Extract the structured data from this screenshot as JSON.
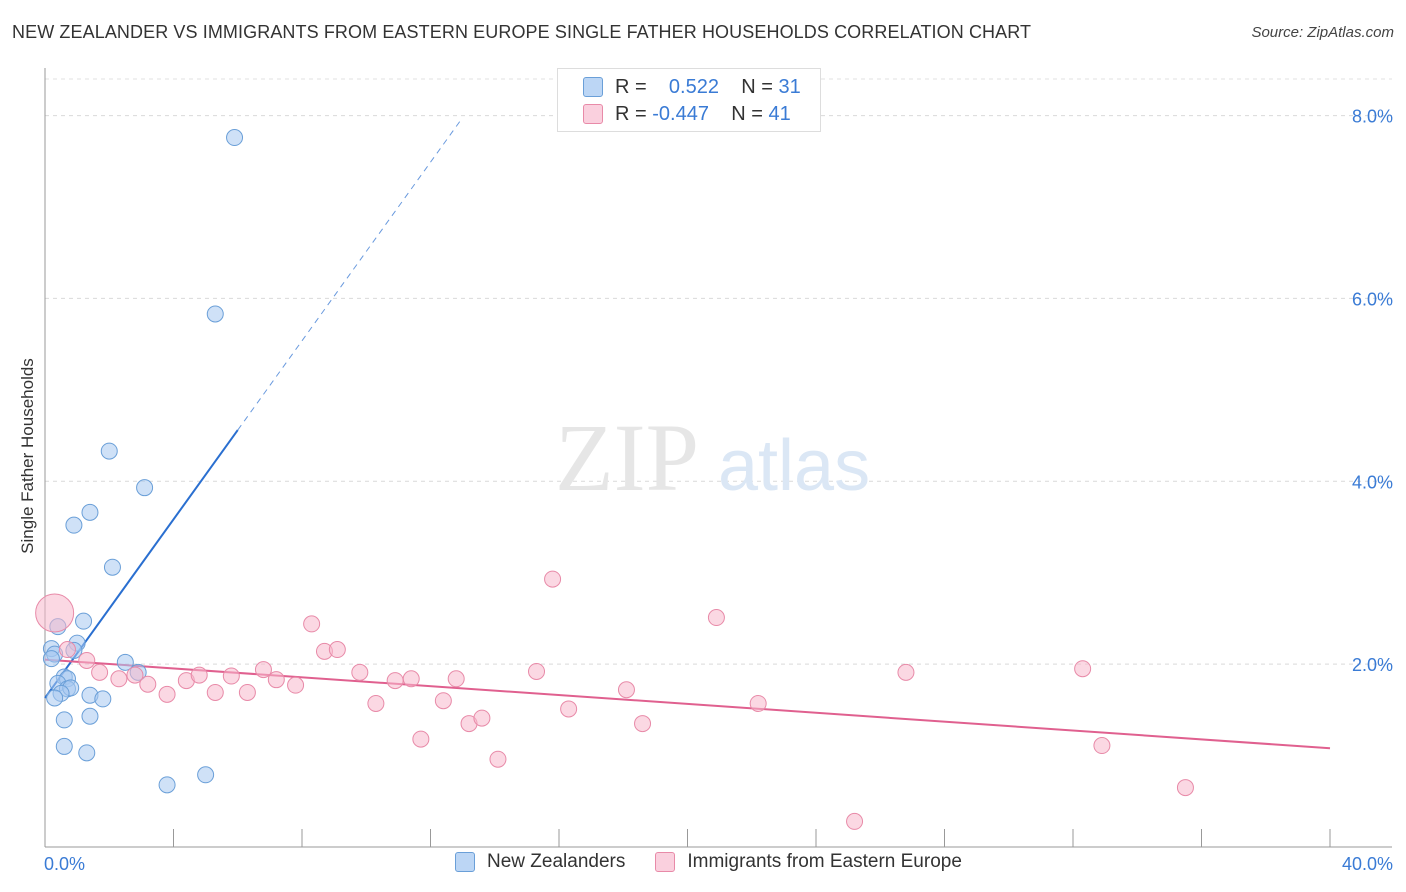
{
  "title": "NEW ZEALANDER VS IMMIGRANTS FROM EASTERN EUROPE SINGLE FATHER HOUSEHOLDS CORRELATION CHART",
  "source": "Source: ZipAtlas.com",
  "watermark": {
    "zip": "ZIP",
    "atlas": "atlas"
  },
  "legend": {
    "rows": [
      {
        "r_label": "R =",
        "r_value": "0.522",
        "n_label": "N =",
        "n_value": "31"
      },
      {
        "r_label": "R =",
        "r_value": "-0.447",
        "n_label": "N =",
        "n_value": "41"
      }
    ]
  },
  "chart_data": {
    "type": "scatter",
    "xlabel": "",
    "ylabel": "Single Father Households",
    "xlim": [
      0,
      40
    ],
    "ylim": [
      0,
      8.4
    ],
    "x_tick_labels": [
      "0.0%",
      "40.0%"
    ],
    "y_ticks": [
      2,
      4,
      6,
      8
    ],
    "y_tick_labels": [
      "2.0%",
      "4.0%",
      "6.0%",
      "8.0%"
    ],
    "grid": true,
    "legend_position": "top-center",
    "colors": {
      "blue_fill": "#a8c8f0",
      "blue_stroke": "#6a9fd8",
      "blue_line": "#2a6fd0",
      "pink_fill": "#f7b8cc",
      "pink_stroke": "#e88aa8",
      "pink_line": "#e0608f"
    },
    "series": [
      {
        "name": "New Zealanders",
        "color": "#a8c8f0",
        "points": [
          [
            5.9,
            7.76
          ],
          [
            5.3,
            5.83
          ],
          [
            2.0,
            4.33
          ],
          [
            3.1,
            3.93
          ],
          [
            1.4,
            3.66
          ],
          [
            0.9,
            3.52
          ],
          [
            2.1,
            3.06
          ],
          [
            1.2,
            2.47
          ],
          [
            0.4,
            2.41
          ],
          [
            0.2,
            2.17
          ],
          [
            0.3,
            2.11
          ],
          [
            0.2,
            2.06
          ],
          [
            1.0,
            2.23
          ],
          [
            0.9,
            2.15
          ],
          [
            2.5,
            2.02
          ],
          [
            2.9,
            1.91
          ],
          [
            0.6,
            1.86
          ],
          [
            0.7,
            1.84
          ],
          [
            0.4,
            1.79
          ],
          [
            0.7,
            1.73
          ],
          [
            0.8,
            1.74
          ],
          [
            0.5,
            1.68
          ],
          [
            0.3,
            1.63
          ],
          [
            1.4,
            1.66
          ],
          [
            1.8,
            1.62
          ],
          [
            0.6,
            1.39
          ],
          [
            1.4,
            1.43
          ],
          [
            0.6,
            1.1
          ],
          [
            1.3,
            1.03
          ],
          [
            3.8,
            0.68
          ],
          [
            5.0,
            0.79
          ]
        ],
        "trend": {
          "x0": 0,
          "y0": 1.63,
          "x1": 6.0,
          "y1": 4.56,
          "dash_x1": 13.0
        }
      },
      {
        "name": "Immigrants from Eastern Europe",
        "color": "#f7b8cc",
        "points": [
          [
            0.3,
            2.56
          ],
          [
            0.7,
            2.16
          ],
          [
            1.3,
            2.04
          ],
          [
            1.7,
            1.91
          ],
          [
            2.3,
            1.84
          ],
          [
            2.8,
            1.88
          ],
          [
            3.2,
            1.78
          ],
          [
            3.8,
            1.67
          ],
          [
            4.4,
            1.82
          ],
          [
            4.8,
            1.88
          ],
          [
            5.3,
            1.69
          ],
          [
            5.8,
            1.87
          ],
          [
            6.3,
            1.69
          ],
          [
            6.8,
            1.94
          ],
          [
            7.2,
            1.83
          ],
          [
            7.8,
            1.77
          ],
          [
            8.3,
            2.44
          ],
          [
            8.7,
            2.14
          ],
          [
            9.1,
            2.16
          ],
          [
            9.8,
            1.91
          ],
          [
            10.3,
            1.57
          ],
          [
            10.9,
            1.82
          ],
          [
            11.4,
            1.84
          ],
          [
            11.7,
            1.18
          ],
          [
            12.4,
            1.6
          ],
          [
            12.8,
            1.84
          ],
          [
            13.2,
            1.35
          ],
          [
            13.6,
            1.41
          ],
          [
            14.1,
            0.96
          ],
          [
            15.3,
            1.92
          ],
          [
            15.8,
            2.93
          ],
          [
            16.3,
            1.51
          ],
          [
            18.1,
            1.72
          ],
          [
            18.6,
            1.35
          ],
          [
            20.9,
            2.51
          ],
          [
            22.2,
            1.57
          ],
          [
            25.2,
            0.28
          ],
          [
            26.8,
            1.91
          ],
          [
            32.3,
            1.95
          ],
          [
            32.9,
            1.11
          ],
          [
            35.5,
            0.65
          ]
        ],
        "trend": {
          "x0": 0,
          "y0": 2.05,
          "x1": 40,
          "y1": 1.08
        }
      }
    ]
  }
}
